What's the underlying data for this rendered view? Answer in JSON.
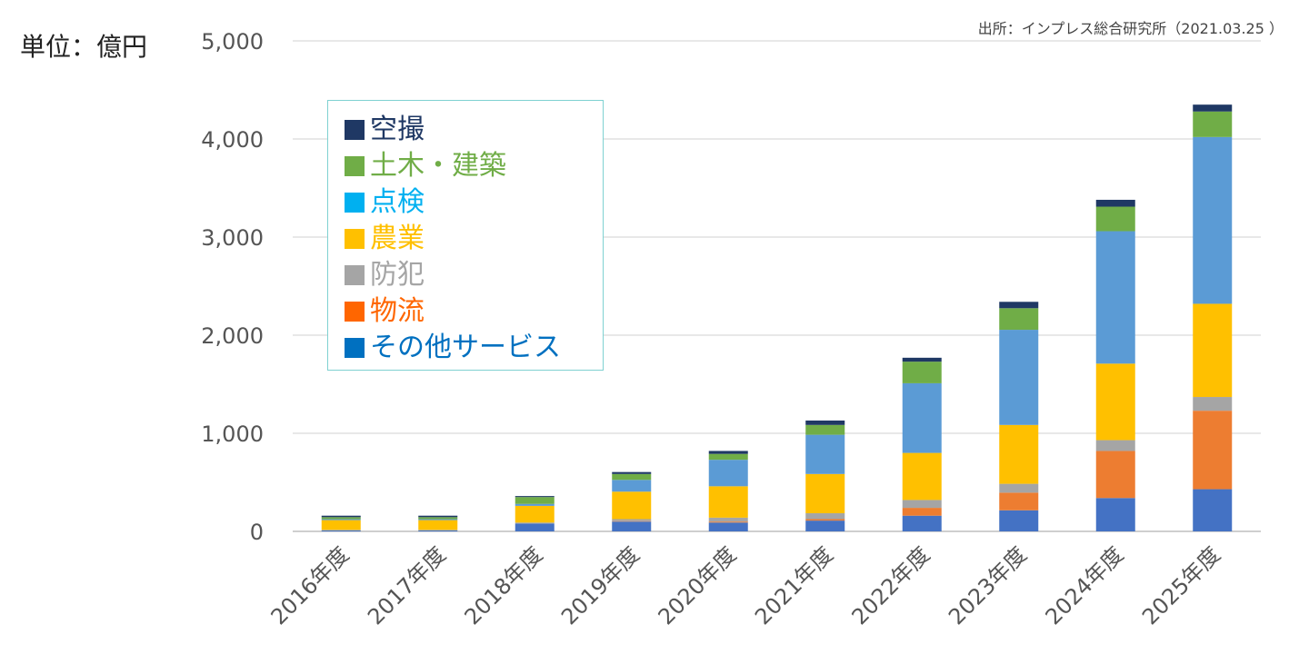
{
  "chart_data": {
    "type": "bar",
    "stacked": true,
    "unit_label": "単位：億円",
    "source": "出所：インプレス総合研究所（2021.03.25 ）",
    "categories": [
      "2016年度",
      "2017年度",
      "2018年度",
      "2019年度",
      "2020年度",
      "2021年度",
      "2022年度",
      "2023年度",
      "2024年度",
      "2025年度"
    ],
    "ylim": [
      0,
      5000
    ],
    "yticks": [
      "0",
      "1,000",
      "2,000",
      "3,000",
      "4,000",
      "5,000"
    ],
    "grid": true,
    "legend_position": "top-left",
    "series": [
      {
        "name": "その他サービス",
        "color": "#4472C4",
        "values": [
          10,
          10,
          80,
          100,
          90,
          110,
          160,
          215,
          340,
          430
        ]
      },
      {
        "name": "物流",
        "color": "#ED7D31",
        "values": [
          0,
          0,
          0,
          5,
          10,
          15,
          80,
          180,
          480,
          800
        ]
      },
      {
        "name": "防犯",
        "color": "#A5A5A5",
        "values": [
          5,
          5,
          10,
          20,
          40,
          60,
          80,
          90,
          110,
          140
        ]
      },
      {
        "name": "農業",
        "color": "#FFC000",
        "values": [
          100,
          100,
          170,
          280,
          320,
          400,
          480,
          600,
          780,
          950
        ]
      },
      {
        "name": "点検",
        "color": "#5B9BD5",
        "values": [
          10,
          10,
          20,
          120,
          270,
          400,
          710,
          970,
          1350,
          1700
        ]
      },
      {
        "name": "土木・建築",
        "color": "#70AD47",
        "values": [
          20,
          20,
          70,
          60,
          60,
          100,
          220,
          220,
          250,
          260
        ]
      },
      {
        "name": "空撮",
        "color": "#1F3864",
        "values": [
          15,
          15,
          10,
          20,
          30,
          45,
          40,
          65,
          70,
          70
        ]
      }
    ],
    "legend": [
      {
        "name": "空撮",
        "color": "#1F3864",
        "text_color": "#1F3864"
      },
      {
        "name": "土木・建築",
        "color": "#70AD47",
        "text_color": "#70AD47"
      },
      {
        "name": "点検",
        "color": "#00B0F0",
        "text_color": "#00B0F0"
      },
      {
        "name": "農業",
        "color": "#FFC000",
        "text_color": "#FFC000"
      },
      {
        "name": "防犯",
        "color": "#A5A5A5",
        "text_color": "#A5A5A5"
      },
      {
        "name": "物流",
        "color": "#FF6600",
        "text_color": "#FF6600"
      },
      {
        "name": "その他サービス",
        "color": "#0070C0",
        "text_color": "#0070C0"
      }
    ]
  }
}
